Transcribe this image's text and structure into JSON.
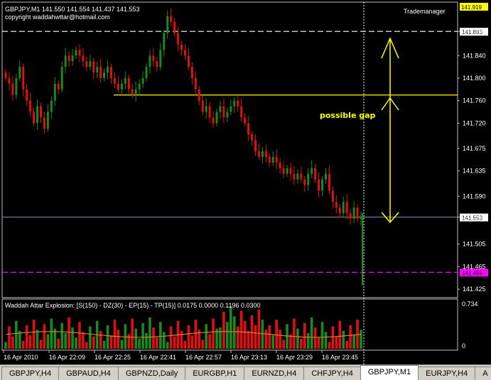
{
  "header": {
    "symbol_line": "GBPJPY,M1  141.550 141.554 141.437 141.553",
    "copyright": "copyright waddahwttar@hotmail.com",
    "trademanager": "Trademanager",
    "top_price_label": "141.919"
  },
  "annotation": {
    "text": "possible gap"
  },
  "colors": {
    "bull": "#1a8a1a",
    "bear": "#e01010",
    "grid": "#606060",
    "axis": "#c0c0c0",
    "yellow": "#ffff00",
    "magenta": "#ff00ff",
    "ma": "#d08040",
    "text": "#ffffff"
  },
  "chart_data": [
    {
      "type": "candlestick",
      "symbol": "GBPJPY,M1",
      "ylim": [
        141.41,
        141.935
      ],
      "yticks": [
        "141.883",
        "141.840",
        "141.800",
        "141.760",
        "141.720",
        "141.675",
        "141.635",
        "141.590",
        "141.553",
        "141.505",
        "141.465",
        "141.425"
      ],
      "xticks": [
        "16 Apr 2010",
        "16 Apr 22:09",
        "16 Apr 22:25",
        "16 Apr 22:41",
        "16 Apr 22:57",
        "16 Apr 23:13",
        "16 Apr 23:29",
        "16 Apr 23:45"
      ],
      "hlines": [
        {
          "value": 141.883,
          "style": "dashed",
          "color": "#ffffff",
          "label": "141.883"
        },
        {
          "value": 141.553,
          "style": "solid",
          "color": "#8080a0",
          "label": "141.553"
        },
        {
          "value": 141.455,
          "style": "dashed",
          "color": "#ff00ff",
          "label": "141.455"
        },
        {
          "value": 141.77,
          "style": "solid",
          "color": "#ffff00",
          "label": ""
        }
      ],
      "closes": [
        141.8,
        141.79,
        141.77,
        141.8,
        141.82,
        141.78,
        141.76,
        141.74,
        141.72,
        141.75,
        141.73,
        141.71,
        141.74,
        141.76,
        141.79,
        141.78,
        141.82,
        141.84,
        141.83,
        141.84,
        141.85,
        141.84,
        141.83,
        141.82,
        141.83,
        141.81,
        141.82,
        141.8,
        141.81,
        141.82,
        141.8,
        141.79,
        141.78,
        141.79,
        141.8,
        141.78,
        141.77,
        141.78,
        141.79,
        141.8,
        141.82,
        141.84,
        141.83,
        141.82,
        141.85,
        141.88,
        141.91,
        141.9,
        141.88,
        141.86,
        141.85,
        141.84,
        141.82,
        141.8,
        141.78,
        141.76,
        141.74,
        141.75,
        141.73,
        141.72,
        141.74,
        141.75,
        141.73,
        141.74,
        141.75,
        141.76,
        141.75,
        141.73,
        141.72,
        141.7,
        141.69,
        141.67,
        141.66,
        141.67,
        141.66,
        141.65,
        141.66,
        141.65,
        141.64,
        141.63,
        141.64,
        141.63,
        141.62,
        141.63,
        141.62,
        141.61,
        141.63,
        141.64,
        141.62,
        141.6,
        141.62,
        141.63,
        141.6,
        141.58,
        141.57,
        141.56,
        141.58,
        141.56,
        141.55,
        141.57,
        141.55,
        141.553
      ],
      "volume_panel": {
        "label": "Waddah Attar Explosion: [S(150) - DZ(30) - EP(15) - TP(15)] 0.0175 0.0000 0.1196 0.0300",
        "ymax_label": "0.734",
        "ymin_label": "0"
      }
    }
  ],
  "tabs": [
    {
      "label": "GBPJPY,H4",
      "active": false
    },
    {
      "label": "GBPAUD,H4",
      "active": false
    },
    {
      "label": "GBPNZD,Daily",
      "active": false
    },
    {
      "label": "EURGBP,H1",
      "active": false
    },
    {
      "label": "EURNZD,H4",
      "active": false
    },
    {
      "label": "CHFJPY,H4",
      "active": false
    },
    {
      "label": "GBPJPY,M1",
      "active": true
    },
    {
      "label": "EURJPY,H4",
      "active": false
    },
    {
      "label": "A",
      "active": false
    }
  ]
}
